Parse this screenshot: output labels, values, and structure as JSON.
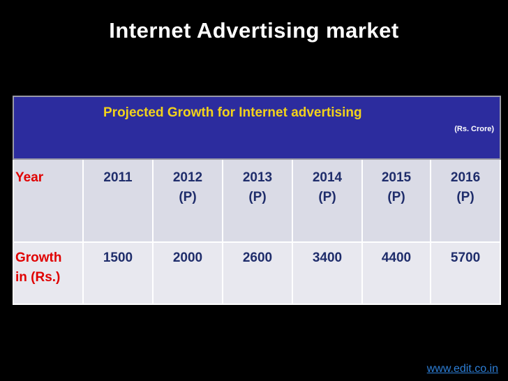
{
  "title": "Internet Advertising market",
  "table": {
    "caption": "Projected Growth  for Internet advertising",
    "unit": "(Rs. Crore)",
    "rows": [
      [
        "Year",
        "2011",
        "2012\n(P)",
        "2013\n(P)",
        "2014\n(P)",
        "2015\n(P)",
        "2016\n(P)"
      ],
      [
        "Growth\nin (Rs.)",
        1500,
        2000,
        2600,
        3400,
        4400,
        5700
      ]
    ]
  },
  "footer": {
    "link": "www.edit.co.in"
  }
}
